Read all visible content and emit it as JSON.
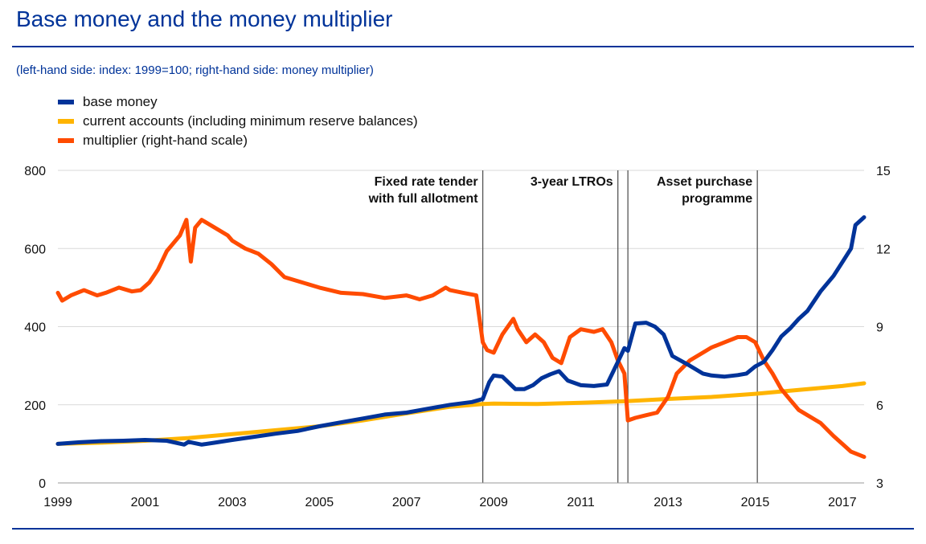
{
  "title": "Base money and the money multiplier",
  "subtitle": "(left-hand side: index: 1999=100; right-hand side: money multiplier)",
  "colors": {
    "base_money": "#003399",
    "current_accounts": "#FFB400",
    "multiplier": "#FF4B00",
    "accent": "#003399"
  },
  "chart_data": {
    "type": "line",
    "title": "Base money and the money multiplier",
    "subtitle": "(left-hand side: index: 1999=100; right-hand side: money multiplier)",
    "xlim": [
      1999,
      2017.5
    ],
    "x_ticks": [
      1999,
      2001,
      2003,
      2005,
      2007,
      2009,
      2011,
      2013,
      2015,
      2017
    ],
    "x_tick_labels": [
      "1999",
      "2001",
      "2003",
      "2005",
      "2007",
      "2009",
      "2011",
      "2013",
      "2015",
      "2017"
    ],
    "y_left": {
      "lim": [
        0,
        800
      ],
      "ticks": [
        0,
        200,
        400,
        600,
        800
      ],
      "tick_labels": [
        "0",
        "200",
        "400",
        "600",
        "800"
      ]
    },
    "y_right": {
      "lim": [
        3,
        15
      ],
      "ticks": [
        3,
        6,
        9,
        12,
        15
      ],
      "tick_labels": [
        "3",
        "6",
        "9",
        "12",
        "15"
      ]
    },
    "grid": "horizontal",
    "legend_position": "top-left",
    "legend": [
      {
        "key": "base_money",
        "label": "base money"
      },
      {
        "key": "current_accounts",
        "label": "current accounts (including minimum reserve balances)"
      },
      {
        "key": "multiplier",
        "label": "multiplier (right-hand scale)"
      }
    ],
    "annotations": [
      {
        "lines": [
          "Fixed rate tender",
          "with full allotment"
        ],
        "x": 2008.75,
        "align": "end"
      },
      {
        "lines": [
          "3-year LTROs"
        ],
        "x": 2011.85,
        "align": "end"
      },
      {
        "lines": [
          "Asset purchase",
          "programme"
        ],
        "x": 2015.05,
        "align": "end"
      }
    ],
    "vertical_markers": [
      2008.75,
      2011.85,
      2012.08,
      2015.05
    ],
    "series": [
      {
        "key": "base_money",
        "axis": "left",
        "name": "base money",
        "x": [
          1999,
          1999.5,
          2000,
          2000.5,
          2001,
          2001.5,
          2001.9,
          2002,
          2002.3,
          2002.6,
          2003,
          2003.5,
          2004,
          2004.5,
          2005,
          2005.5,
          2006,
          2006.5,
          2007,
          2007.5,
          2008,
          2008.5,
          2008.75,
          2008.9,
          2009.0,
          2009.2,
          2009.5,
          2009.7,
          2009.9,
          2010.1,
          2010.3,
          2010.5,
          2010.7,
          2011.0,
          2011.3,
          2011.6,
          2011.85,
          2012.0,
          2012.08,
          2012.25,
          2012.5,
          2012.7,
          2012.9,
          2013.1,
          2013.5,
          2013.8,
          2014.0,
          2014.3,
          2014.6,
          2014.8,
          2015.0,
          2015.2,
          2015.4,
          2015.6,
          2015.8,
          2016.0,
          2016.2,
          2016.5,
          2016.8,
          2017.0,
          2017.2,
          2017.3,
          2017.5
        ],
        "y": [
          100,
          104,
          107,
          108,
          110,
          108,
          98,
          105,
          98,
          103,
          110,
          118,
          126,
          133,
          145,
          155,
          165,
          175,
          180,
          190,
          200,
          207,
          215,
          258,
          275,
          272,
          240,
          240,
          250,
          268,
          278,
          286,
          262,
          250,
          248,
          252,
          310,
          345,
          338,
          408,
          410,
          400,
          380,
          325,
          300,
          280,
          275,
          272,
          276,
          280,
          298,
          310,
          340,
          375,
          395,
          420,
          440,
          490,
          530,
          565,
          600,
          660,
          680
        ]
      },
      {
        "key": "current_accounts",
        "axis": "left",
        "name": "current accounts (including minimum reserve balances)",
        "x": [
          1999,
          2000,
          2001,
          2002,
          2003,
          2004,
          2005,
          2006,
          2007,
          2008,
          2008.75,
          2009,
          2010,
          2011,
          2012,
          2013,
          2014,
          2015,
          2016,
          2017,
          2017.5
        ],
        "y": [
          100,
          103,
          108,
          115,
          125,
          135,
          145,
          160,
          178,
          195,
          202,
          203,
          202,
          205,
          209,
          215,
          220,
          228,
          238,
          248,
          255
        ]
      },
      {
        "key": "multiplier",
        "axis": "right",
        "name": "multiplier (right-hand scale)",
        "x": [
          1999,
          1999.1,
          1999.3,
          1999.6,
          1999.9,
          2000.1,
          2000.4,
          2000.7,
          2000.9,
          2001.1,
          2001.3,
          2001.5,
          2001.8,
          2001.95,
          2002.05,
          2002.15,
          2002.3,
          2002.6,
          2002.9,
          2003.0,
          2003.3,
          2003.6,
          2003.9,
          2004.2,
          2004.6,
          2005.0,
          2005.5,
          2006.0,
          2006.5,
          2007.0,
          2007.3,
          2007.6,
          2007.9,
          2008.0,
          2008.3,
          2008.6,
          2008.75,
          2008.85,
          2009.0,
          2009.2,
          2009.45,
          2009.55,
          2009.75,
          2009.95,
          2010.15,
          2010.35,
          2010.55,
          2010.75,
          2011.0,
          2011.3,
          2011.5,
          2011.7,
          2011.85,
          2012.0,
          2012.08,
          2012.25,
          2012.5,
          2012.75,
          2013.0,
          2013.2,
          2013.5,
          2013.8,
          2014.0,
          2014.3,
          2014.6,
          2014.8,
          2015.0,
          2015.2,
          2015.4,
          2015.6,
          2015.8,
          2016.0,
          2016.2,
          2016.5,
          2016.8,
          2017.0,
          2017.2,
          2017.5
        ],
        "y": [
          10.3,
          10.0,
          10.2,
          10.4,
          10.2,
          10.3,
          10.5,
          10.35,
          10.4,
          10.7,
          11.2,
          11.9,
          12.5,
          13.1,
          11.5,
          12.8,
          13.1,
          12.8,
          12.5,
          12.3,
          12.0,
          11.8,
          11.4,
          10.9,
          10.7,
          10.5,
          10.3,
          10.25,
          10.1,
          10.2,
          10.05,
          10.2,
          10.5,
          10.4,
          10.3,
          10.2,
          8.4,
          8.1,
          8.0,
          8.7,
          9.3,
          8.9,
          8.4,
          8.7,
          8.4,
          7.8,
          7.6,
          8.6,
          8.9,
          8.8,
          8.9,
          8.4,
          7.7,
          7.2,
          5.4,
          5.5,
          5.6,
          5.7,
          6.3,
          7.2,
          7.7,
          8.0,
          8.2,
          8.4,
          8.6,
          8.6,
          8.4,
          7.7,
          7.2,
          6.6,
          6.2,
          5.8,
          5.6,
          5.3,
          4.8,
          4.5,
          4.2,
          4.0
        ]
      }
    ]
  }
}
